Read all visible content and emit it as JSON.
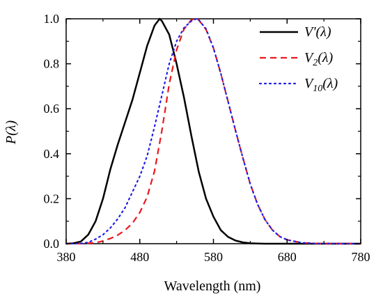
{
  "chart_data": {
    "type": "line",
    "xlabel": "Wavelength (nm)",
    "ylabel": "P(λ)",
    "xlim": [
      380,
      780
    ],
    "ylim": [
      0.0,
      1.0
    ],
    "xticks": [
      "380",
      "480",
      "580",
      "680",
      "780"
    ],
    "yticks": [
      "0.0",
      "0.2",
      "0.4",
      "0.6",
      "0.8",
      "1.0"
    ],
    "legend_position": "top-right",
    "grid": false,
    "series": [
      {
        "name": "V'(λ)",
        "name_main": "V'(λ)",
        "name_sub": "",
        "color": "#000000",
        "style": "solid",
        "x": [
          380,
          390,
          400,
          410,
          420,
          430,
          440,
          450,
          460,
          470,
          480,
          490,
          500,
          507,
          510,
          520,
          530,
          540,
          550,
          560,
          570,
          580,
          590,
          600,
          610,
          620,
          630,
          640,
          650,
          660,
          680,
          700,
          780
        ],
        "y": [
          0.0,
          0.002,
          0.01,
          0.04,
          0.1,
          0.2,
          0.33,
          0.44,
          0.54,
          0.64,
          0.76,
          0.88,
          0.97,
          1.0,
          0.99,
          0.93,
          0.8,
          0.65,
          0.48,
          0.32,
          0.2,
          0.12,
          0.06,
          0.03,
          0.014,
          0.006,
          0.002,
          0.001,
          0.0,
          0.0,
          0.0,
          0.0,
          0.0
        ]
      },
      {
        "name": "V2(λ)",
        "name_main": "V",
        "name_sub": "2",
        "name_tail": "(λ)",
        "color": "#e8191c",
        "style": "dashed",
        "x": [
          380,
          400,
          420,
          430,
          440,
          450,
          460,
          470,
          480,
          490,
          500,
          510,
          520,
          530,
          540,
          550,
          555,
          560,
          570,
          580,
          590,
          600,
          610,
          620,
          630,
          640,
          650,
          660,
          670,
          680,
          700,
          720,
          780
        ],
        "y": [
          0.0,
          0.0004,
          0.004,
          0.012,
          0.023,
          0.038,
          0.06,
          0.091,
          0.139,
          0.208,
          0.323,
          0.503,
          0.71,
          0.862,
          0.954,
          0.995,
          1.0,
          0.995,
          0.952,
          0.87,
          0.757,
          0.631,
          0.503,
          0.381,
          0.265,
          0.175,
          0.107,
          0.061,
          0.032,
          0.017,
          0.004,
          0.001,
          0.0
        ]
      },
      {
        "name": "V10(λ)",
        "name_main": "V",
        "name_sub": "10",
        "name_tail": "(λ)",
        "color": "#1f1fe8",
        "style": "dotted",
        "x": [
          380,
          400,
          410,
          420,
          430,
          440,
          450,
          460,
          470,
          480,
          490,
          500,
          510,
          520,
          530,
          540,
          550,
          557,
          560,
          570,
          580,
          590,
          600,
          610,
          620,
          630,
          640,
          650,
          660,
          670,
          680,
          700,
          720,
          780
        ],
        "y": [
          0.0,
          0.001,
          0.006,
          0.02,
          0.04,
          0.07,
          0.11,
          0.16,
          0.23,
          0.3,
          0.39,
          0.52,
          0.66,
          0.8,
          0.9,
          0.96,
          0.99,
          1.0,
          0.995,
          0.955,
          0.87,
          0.757,
          0.631,
          0.503,
          0.381,
          0.265,
          0.175,
          0.107,
          0.061,
          0.032,
          0.017,
          0.004,
          0.001,
          0.0
        ]
      }
    ]
  }
}
